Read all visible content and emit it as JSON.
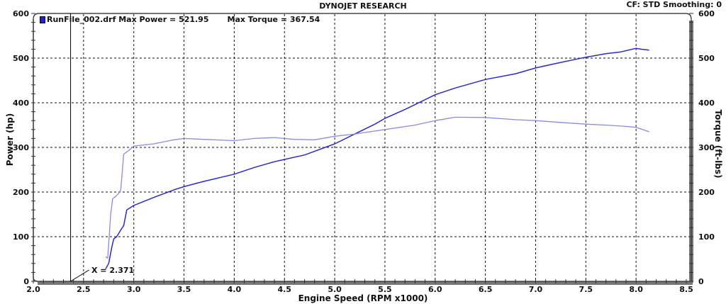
{
  "header": {
    "title": "DYNOJET RESEARCH",
    "cf_info": "CF: STD  Smoothing: 0"
  },
  "legend": {
    "run_file": "RunFile_002.drf Max Power = 521.95",
    "max_torque": "Max Torque = 367.54",
    "swatch_color": "#2222cc"
  },
  "cursor": {
    "label": "X = 2.371",
    "x_value": 2.371
  },
  "axes": {
    "x_label": "Engine Speed (RPM x1000)",
    "y_left_label": "Power (hp)",
    "y_right_label": "Torque (ft-lbs)"
  },
  "chart_data": {
    "type": "line",
    "title": "DYNOJET RESEARCH",
    "xlabel": "Engine Speed (RPM x1000)",
    "ylabel": "Power (hp)",
    "y2label": "Torque (ft-lbs)",
    "xlim": [
      2.0,
      8.5
    ],
    "ylim": [
      0,
      600
    ],
    "y2lim": [
      0,
      600
    ],
    "x_ticks": [
      2.0,
      2.5,
      3.0,
      3.5,
      4.0,
      4.5,
      5.0,
      5.5,
      6.0,
      6.5,
      7.0,
      7.5,
      8.0,
      8.5
    ],
    "y_ticks": [
      0,
      100,
      200,
      300,
      400,
      500,
      600
    ],
    "grid": true,
    "legend_position": "top-left",
    "annotations": [
      "X = 2.371",
      "CF: STD  Smoothing: 0",
      "Max Power = 521.95",
      "Max Torque = 367.54"
    ],
    "series": [
      {
        "name": "Power (hp)",
        "color": "#2a2ad0",
        "x": [
          2.72,
          2.75,
          2.78,
          2.8,
          2.83,
          2.87,
          2.9,
          2.93,
          3.0,
          3.2,
          3.4,
          3.5,
          3.7,
          4.0,
          4.2,
          4.4,
          4.5,
          4.7,
          5.0,
          5.2,
          5.4,
          5.5,
          5.7,
          6.0,
          6.2,
          6.5,
          6.8,
          7.0,
          7.2,
          7.5,
          7.7,
          7.85,
          8.0,
          8.05,
          8.13
        ],
        "y": [
          28,
          40,
          75,
          95,
          100,
          115,
          125,
          160,
          170,
          188,
          205,
          212,
          224,
          240,
          255,
          268,
          273,
          283,
          308,
          330,
          352,
          365,
          385,
          418,
          433,
          452,
          465,
          478,
          488,
          502,
          510,
          514,
          521.95,
          520,
          518
        ]
      },
      {
        "name": "Torque (ft-lbs)",
        "color": "#8a8ae8",
        "x": [
          2.72,
          2.74,
          2.77,
          2.79,
          2.82,
          2.85,
          2.87,
          2.9,
          2.95,
          3.0,
          3.2,
          3.4,
          3.5,
          3.7,
          4.0,
          4.2,
          4.4,
          4.6,
          4.8,
          5.0,
          5.2,
          5.5,
          5.8,
          6.0,
          6.2,
          6.5,
          6.8,
          7.0,
          7.3,
          7.5,
          7.7,
          7.9,
          8.0,
          8.13
        ],
        "y": [
          55,
          52,
          150,
          185,
          190,
          197,
          205,
          285,
          293,
          303,
          308,
          317,
          320,
          318,
          315,
          320,
          322,
          318,
          317,
          325,
          330,
          340,
          350,
          360,
          367.54,
          367,
          362,
          360,
          355,
          352,
          350,
          347,
          345,
          335
        ]
      }
    ]
  }
}
